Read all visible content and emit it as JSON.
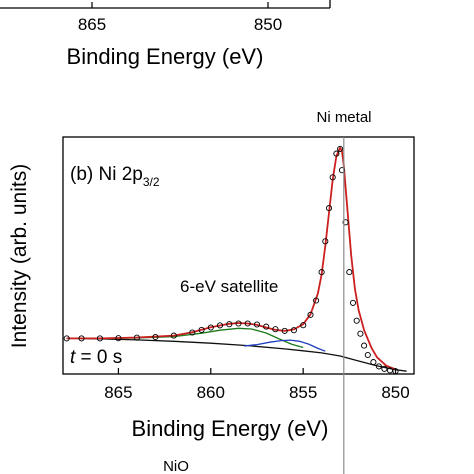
{
  "chart_data": [
    {
      "type": "line",
      "partial": true,
      "xlabel": "Binding Energy (eV)",
      "tick_labels": [
        "865",
        "850"
      ],
      "xlim": [
        868,
        849
      ]
    },
    {
      "type": "scatter",
      "panel_label": "(b) Ni 2p",
      "panel_label_sub": "3/2",
      "xlabel": "Binding Energy (eV)",
      "ylabel": "Intensity (arb. units)",
      "xlim": [
        868,
        849
      ],
      "xticks": [
        865,
        860,
        855,
        850
      ],
      "reference_line": {
        "label": "Ni metal",
        "x": 852.8
      },
      "annotations": [
        {
          "text": "6-eV satellite"
        },
        {
          "text_italic": "t",
          "text": " = 0 s"
        }
      ],
      "footer_label": "NiO",
      "series": [
        {
          "kind": "markers",
          "x": [
            867.8,
            867.0,
            866.0,
            865.0,
            864.0,
            863.0,
            862.0,
            861.0,
            860.5,
            860.0,
            859.5,
            859.0,
            858.5,
            858.0,
            857.5,
            857.0,
            856.5,
            856.0,
            855.5,
            855.0,
            854.6,
            854.3,
            854.0,
            853.8,
            853.6,
            853.4,
            853.2,
            853.0,
            852.9,
            852.7,
            852.5,
            852.3,
            852.1,
            851.9,
            851.7,
            851.5,
            851.2,
            850.9,
            850.6,
            850.3,
            850.0
          ],
          "y": [
            0.15,
            0.15,
            0.15,
            0.151,
            0.153,
            0.156,
            0.162,
            0.175,
            0.186,
            0.196,
            0.205,
            0.21,
            0.213,
            0.213,
            0.209,
            0.2,
            0.189,
            0.182,
            0.185,
            0.206,
            0.25,
            0.31,
            0.43,
            0.56,
            0.7,
            0.83,
            0.93,
            0.95,
            0.86,
            0.64,
            0.43,
            0.3,
            0.225,
            0.17,
            0.12,
            0.08,
            0.05,
            0.032,
            0.022,
            0.015,
            0.012
          ]
        },
        {
          "kind": "fit",
          "color": "#cc1f1f",
          "x": [
            867.8,
            866,
            864,
            862,
            861,
            860,
            859,
            858.5,
            858,
            857.5,
            857,
            856.5,
            856,
            855.5,
            855,
            854.6,
            854.2,
            854,
            853.8,
            853.6,
            853.4,
            853.2,
            853,
            852.9,
            852.8,
            852.6,
            852.4,
            852.2,
            852,
            851.7,
            851.3,
            851,
            850.5,
            850
          ],
          "y": [
            0.15,
            0.15,
            0.154,
            0.162,
            0.176,
            0.197,
            0.212,
            0.215,
            0.213,
            0.207,
            0.196,
            0.186,
            0.182,
            0.188,
            0.21,
            0.252,
            0.34,
            0.42,
            0.54,
            0.68,
            0.82,
            0.92,
            0.955,
            0.94,
            0.88,
            0.69,
            0.5,
            0.36,
            0.27,
            0.185,
            0.11,
            0.07,
            0.035,
            0.02
          ]
        },
        {
          "kind": "component",
          "color": "#1a7a1a",
          "x": [
            867.8,
            864,
            862,
            860.5,
            859.5,
            858.5,
            857.8,
            857,
            856.3,
            855.6,
            855
          ],
          "y": [
            0.15,
            0.152,
            0.158,
            0.172,
            0.185,
            0.193,
            0.19,
            0.173,
            0.148,
            0.125,
            0.112
          ]
        },
        {
          "kind": "component",
          "color": "#1f3fbf",
          "x": [
            858.2,
            857.5,
            856.8,
            856.2,
            855.7,
            855.2,
            854.7,
            854.2,
            853.8
          ],
          "y": [
            0.118,
            0.124,
            0.134,
            0.141,
            0.143,
            0.138,
            0.126,
            0.108,
            0.096
          ]
        },
        {
          "kind": "background",
          "color": "#111111",
          "x": [
            867.8,
            866,
            864,
            862,
            860,
            858,
            856,
            855,
            854,
            853,
            852,
            851,
            850,
            849.4
          ],
          "y": [
            0.15,
            0.148,
            0.144,
            0.138,
            0.13,
            0.12,
            0.106,
            0.098,
            0.089,
            0.076,
            0.055,
            0.034,
            0.018,
            0.012
          ]
        }
      ]
    }
  ]
}
